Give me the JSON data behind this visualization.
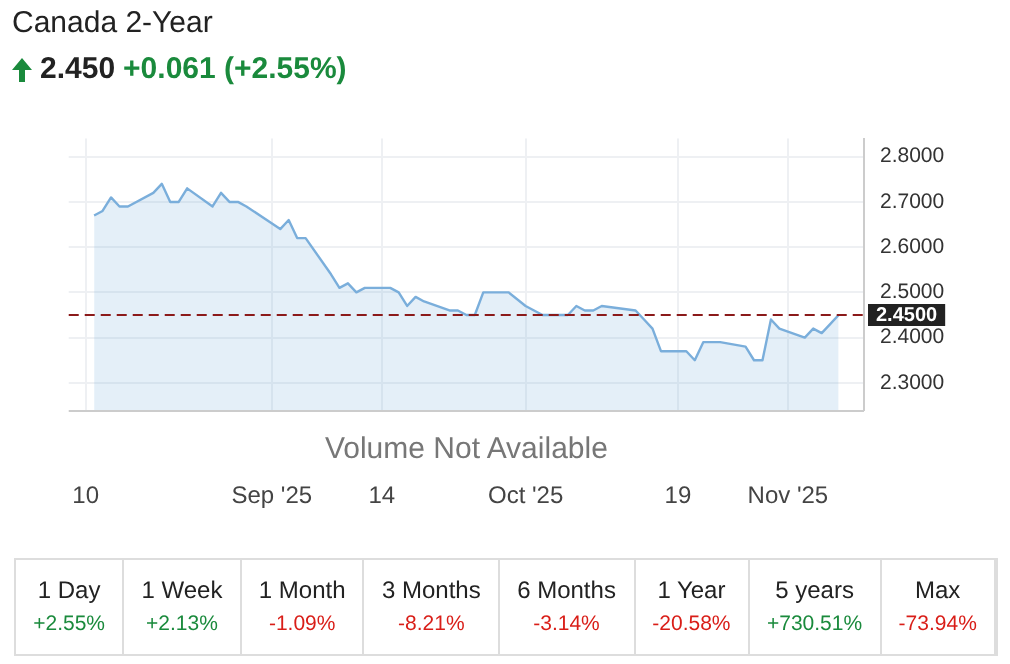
{
  "chart_data": {
    "type": "area",
    "title": "Canada 2-Year",
    "subtitle": "2.450 +0.061 (+2.55%)",
    "x": [
      "2025-08-11",
      "2025-08-12",
      "2025-08-13",
      "2025-08-14",
      "2025-08-15",
      "2025-08-18",
      "2025-08-19",
      "2025-08-20",
      "2025-08-21",
      "2025-08-22",
      "2025-08-25",
      "2025-08-26",
      "2025-08-27",
      "2025-08-28",
      "2025-08-29",
      "2025-09-02",
      "2025-09-03",
      "2025-09-04",
      "2025-09-05",
      "2025-09-08",
      "2025-09-09",
      "2025-09-10",
      "2025-09-11",
      "2025-09-12",
      "2025-09-15",
      "2025-09-16",
      "2025-09-17",
      "2025-09-18",
      "2025-09-19",
      "2025-09-22",
      "2025-09-23",
      "2025-09-24",
      "2025-09-25",
      "2025-09-26",
      "2025-09-29",
      "2025-10-01",
      "2025-10-02",
      "2025-10-03",
      "2025-10-06",
      "2025-10-07",
      "2025-10-08",
      "2025-10-09",
      "2025-10-10",
      "2025-10-14",
      "2025-10-15",
      "2025-10-16",
      "2025-10-17",
      "2025-10-20",
      "2025-10-21",
      "2025-10-22",
      "2025-10-23",
      "2025-10-24",
      "2025-10-27",
      "2025-10-28",
      "2025-10-29",
      "2025-10-30",
      "2025-10-31",
      "2025-11-03",
      "2025-11-04",
      "2025-11-05",
      "2025-11-06",
      "2025-11-07"
    ],
    "series": [
      {
        "color": "#7aaedb",
        "values": [
          2.67,
          2.68,
          2.71,
          2.69,
          2.69,
          2.72,
          2.74,
          2.7,
          2.7,
          2.73,
          2.69,
          2.72,
          2.7,
          2.7,
          2.69,
          2.64,
          2.66,
          2.62,
          2.62,
          2.54,
          2.51,
          2.52,
          2.5,
          2.51,
          2.51,
          2.5,
          2.47,
          2.49,
          2.48,
          2.46,
          2.46,
          2.45,
          2.45,
          2.5,
          2.5,
          2.47,
          2.46,
          2.45,
          2.45,
          2.47,
          2.46,
          2.46,
          2.47,
          2.46,
          2.44,
          2.42,
          2.37,
          2.37,
          2.35,
          2.39,
          2.39,
          2.39,
          2.38,
          2.35,
          2.35,
          2.44,
          2.42,
          2.4,
          2.42,
          2.41,
          2.43,
          2.45
        ]
      }
    ],
    "xlim": [
      "2025-08-08",
      "2025-11-10"
    ],
    "xticks": [
      {
        "value": "2025-08-10",
        "label": "10"
      },
      {
        "value": "2025-09-01",
        "label": "Sep '25"
      },
      {
        "value": "2025-09-14",
        "label": "14"
      },
      {
        "value": "2025-10-01",
        "label": "Oct '25"
      },
      {
        "value": "2025-10-19",
        "label": "19"
      },
      {
        "value": "2025-11-01",
        "label": "Nov '25"
      }
    ],
    "ylim": [
      2.24,
      2.84
    ],
    "yticks": [
      {
        "value": 2.3,
        "label": "2.3000"
      },
      {
        "value": 2.4,
        "label": "2.4000"
      },
      {
        "value": 2.5,
        "label": "2.5000"
      },
      {
        "value": 2.6,
        "label": "2.6000"
      },
      {
        "value": 2.7,
        "label": "2.7000"
      },
      {
        "value": 2.8,
        "label": "2.8000"
      }
    ],
    "ref_lines": [
      {
        "axis": "y",
        "value": 2.45,
        "label": "2.4500",
        "color": "#8b1a1a",
        "line_style": "dashed"
      }
    ],
    "grid": true,
    "annotations": [
      "Volume Not Available",
      "1 Day",
      "+2.55%",
      "1 Week",
      "+2.13%",
      "1 Month",
      "-1.09%",
      "3 Months",
      "-8.21%",
      "6 Months",
      "-3.14%",
      "1 Year",
      "-20.58%",
      "5 years",
      "+730.51%",
      "Max",
      "-73.94%"
    ]
  }
}
